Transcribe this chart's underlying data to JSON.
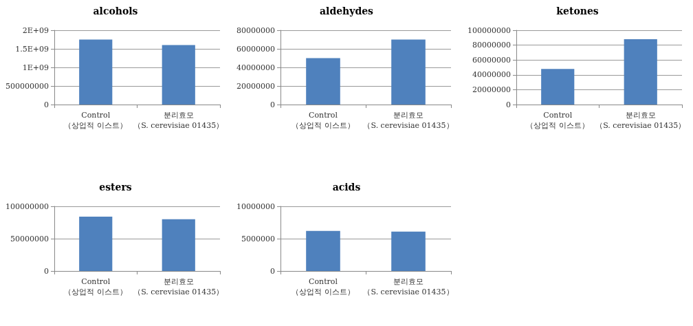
{
  "chart_data": [
    {
      "type": "bar",
      "title": "alcohols",
      "categories": [
        "Control\n（상업적 이스트）",
        "분리효모\n（S. cerevisiae 01435）"
      ],
      "values": [
        1750000000,
        1600000000
      ],
      "color": "#4f81bd",
      "ylim": [
        0,
        2000000000
      ],
      "yticks": [
        0,
        500000000,
        {
          "value": 1000000000,
          "label": "1E+09"
        },
        {
          "value": 1500000000,
          "label": "1.5E+09"
        },
        {
          "value": 2000000000,
          "label": "2E+09"
        }
      ],
      "grid": "y"
    },
    {
      "type": "bar",
      "title": "aldehydes",
      "categories": [
        "Control\n（상업적 이스트）",
        "분리효모\n（S. cerevisiae 01435）"
      ],
      "values": [
        50000000,
        70000000
      ],
      "color": "#4f81bd",
      "ylim": [
        0,
        80000000
      ],
      "yticks": [
        0,
        20000000,
        40000000,
        60000000,
        80000000
      ],
      "grid": "y"
    },
    {
      "type": "bar",
      "title": "ketones",
      "categories": [
        "Control\n（상업적 이스트）",
        "분리효모\n（S. cerevisiae 01435）"
      ],
      "values": [
        48000000,
        88000000
      ],
      "color": "#4f81bd",
      "ylim": [
        0,
        100000000
      ],
      "yticks": [
        0,
        20000000,
        40000000,
        60000000,
        80000000,
        100000000
      ],
      "grid": "y"
    },
    {
      "type": "bar",
      "title": "esters",
      "categories": [
        "Control\n（상업적 이스트）",
        "분리효모\n（S. cerevisiae 01435）"
      ],
      "values": [
        84000000,
        80000000
      ],
      "color": "#4f81bd",
      "ylim": [
        0,
        100000000
      ],
      "yticks": [
        0,
        50000000,
        100000000
      ],
      "grid": "y"
    },
    {
      "type": "bar",
      "title": "acids",
      "categories": [
        "Control\n（상업적 이스트）",
        "분리효모\n（S. cerevisiae 01435）"
      ],
      "values": [
        6200000,
        6100000
      ],
      "color": "#4f81bd",
      "ylim": [
        0,
        10000000
      ],
      "yticks": [
        0,
        5000000,
        10000000
      ],
      "grid": "y"
    }
  ]
}
